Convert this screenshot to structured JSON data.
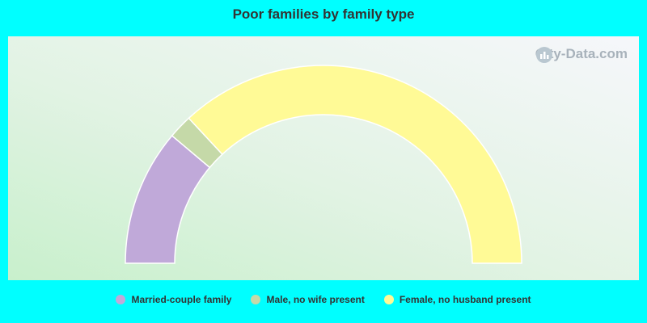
{
  "chart_data": {
    "type": "pie",
    "variant": "semi-donut",
    "title": "Poor families by family type",
    "categories": [
      "Married-couple family",
      "Male, no wife present",
      "Female, no husband present"
    ],
    "values": [
      22.3,
      3.9,
      73.8
    ],
    "colors": [
      "#c0a9d9",
      "#c5d9a8",
      "#fffa96"
    ],
    "legend_position": "bottom"
  },
  "watermark": {
    "text": "City-Data.com",
    "icon": "city-data-logo-icon"
  }
}
